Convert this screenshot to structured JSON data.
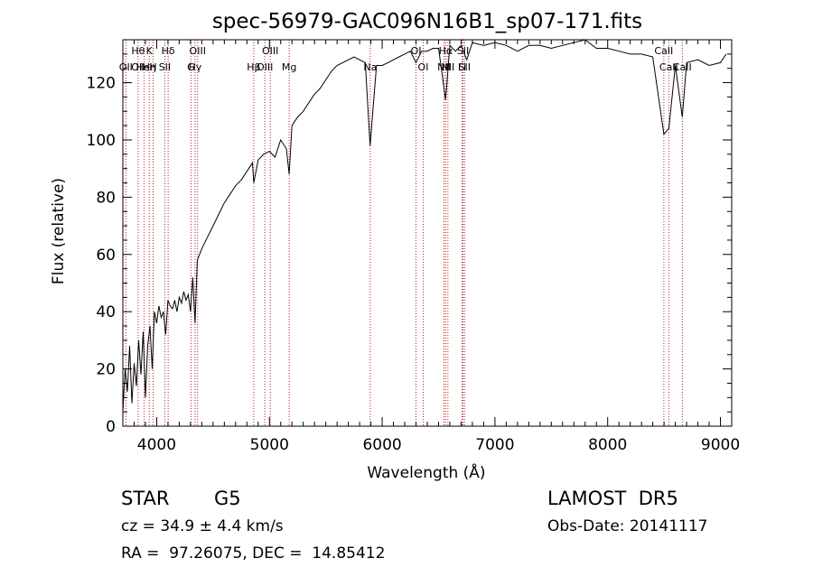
{
  "chart_data": {
    "type": "line",
    "title": "spec-56979-GAC096N16B1_sp07-171.fits",
    "xlabel": "Wavelength (Å)",
    "ylabel": "Flux (relative)",
    "xlim": [
      3700,
      9100
    ],
    "ylim": [
      0,
      135
    ],
    "xticks": [
      4000,
      5000,
      6000,
      7000,
      8000,
      9000
    ],
    "yticks": [
      0,
      20,
      40,
      60,
      80,
      100,
      120
    ],
    "grid": false,
    "series": [
      {
        "x": [
          3700,
          3720,
          3740,
          3760,
          3780,
          3800,
          3820,
          3840,
          3860,
          3880,
          3900,
          3920,
          3940,
          3960,
          3970,
          3980,
          4000,
          4020,
          4040,
          4060,
          4080,
          4100,
          4120,
          4140,
          4160,
          4180,
          4200,
          4220,
          4240,
          4260,
          4280,
          4300,
          4320,
          4340,
          4360,
          4380,
          4400,
          4450,
          4500,
          4550,
          4600,
          4650,
          4700,
          4750,
          4800,
          4850,
          4861,
          4900,
          4950,
          5000,
          5050,
          5100,
          5150,
          5175,
          5200,
          5250,
          5300,
          5350,
          5400,
          5450,
          5500,
          5550,
          5600,
          5650,
          5700,
          5750,
          5800,
          5850,
          5893,
          5950,
          6000,
          6050,
          6100,
          6150,
          6200,
          6250,
          6300,
          6350,
          6400,
          6450,
          6500,
          6563,
          6600,
          6650,
          6700,
          6750,
          6800,
          6900,
          7000,
          7100,
          7200,
          7300,
          7400,
          7500,
          7600,
          7700,
          7800,
          7900,
          8000,
          8100,
          8200,
          8300,
          8400,
          8498,
          8542,
          8600,
          8662,
          8700,
          8800,
          8900,
          9000,
          9050
        ],
        "y": [
          5,
          20,
          12,
          28,
          8,
          22,
          14,
          30,
          18,
          33,
          10,
          28,
          35,
          20,
          30,
          40,
          36,
          42,
          38,
          40,
          32,
          44,
          42,
          41,
          44,
          40,
          45,
          43,
          47,
          44,
          46,
          40,
          52,
          36,
          58,
          60,
          62,
          66,
          70,
          74,
          78,
          81,
          84,
          86,
          89,
          92,
          85,
          93,
          95,
          96,
          94,
          100,
          97,
          88,
          105,
          108,
          110,
          113,
          116,
          118,
          121,
          124,
          126,
          127,
          128,
          129,
          128,
          127,
          98,
          126,
          126,
          127,
          128,
          129,
          130,
          131,
          127,
          131,
          131,
          132,
          132,
          114,
          133,
          131,
          133,
          128,
          134,
          133,
          134,
          133,
          131,
          133,
          133,
          132,
          133,
          134,
          135,
          132,
          132,
          131,
          130,
          130,
          129,
          102,
          104,
          126,
          108,
          127,
          128,
          126,
          127,
          130
        ]
      }
    ],
    "annotations": [
      {
        "wavelength": 3727,
        "upper": "",
        "lower": "OII"
      },
      {
        "wavelength": 3835,
        "upper": "Hθ",
        "lower": "OII"
      },
      {
        "wavelength": 3889,
        "upper": "",
        "lower": "HeI"
      },
      {
        "wavelength": 3934,
        "upper": "K",
        "lower": "Hη"
      },
      {
        "wavelength": 3968,
        "upper": "",
        "lower": "H"
      },
      {
        "wavelength": 4072,
        "upper": "",
        "lower": "SII"
      },
      {
        "wavelength": 4102,
        "upper": "Hδ",
        "lower": ""
      },
      {
        "wavelength": 4304,
        "upper": "",
        "lower": "G"
      },
      {
        "wavelength": 4340,
        "upper": "",
        "lower": "Hγ"
      },
      {
        "wavelength": 4363,
        "upper": "OIII",
        "lower": ""
      },
      {
        "wavelength": 4861,
        "upper": "",
        "lower": "Hβ"
      },
      {
        "wavelength": 4959,
        "upper": "",
        "lower": "OIII"
      },
      {
        "wavelength": 5007,
        "upper": "OIII",
        "lower": ""
      },
      {
        "wavelength": 5175,
        "upper": "",
        "lower": "Mg"
      },
      {
        "wavelength": 5894,
        "upper": "",
        "lower": "Na"
      },
      {
        "wavelength": 6300,
        "upper": "OI",
        "lower": ""
      },
      {
        "wavelength": 6364,
        "upper": "",
        "lower": "OI"
      },
      {
        "wavelength": 6548,
        "upper": "",
        "lower": "NII"
      },
      {
        "wavelength": 6563,
        "upper": "Hα",
        "lower": ""
      },
      {
        "wavelength": 6583,
        "upper": "",
        "lower": "NII"
      },
      {
        "wavelength": 6708,
        "upper": "",
        "lower": "Li"
      },
      {
        "wavelength": 6717,
        "upper": "SII",
        "lower": ""
      },
      {
        "wavelength": 6731,
        "upper": "",
        "lower": "SII"
      },
      {
        "wavelength": 8498,
        "upper": "CaII",
        "lower": ""
      },
      {
        "wavelength": 8542,
        "upper": "",
        "lower": "CaII"
      },
      {
        "wavelength": 8662,
        "upper": "",
        "lower": "CaII"
      }
    ]
  },
  "info": {
    "object_class": "STAR",
    "subclass": "G5",
    "survey": "LAMOST  DR5",
    "cz": "cz = 34.9 ± 4.4 km/s",
    "obs_date": "Obs-Date: 20141117",
    "coords": "RA =  97.26075, DEC =  14.85412"
  },
  "colors": {
    "spectrum": "#000000",
    "line_markers": "#b22222",
    "axes": "#000000",
    "background": "#ffffff"
  }
}
